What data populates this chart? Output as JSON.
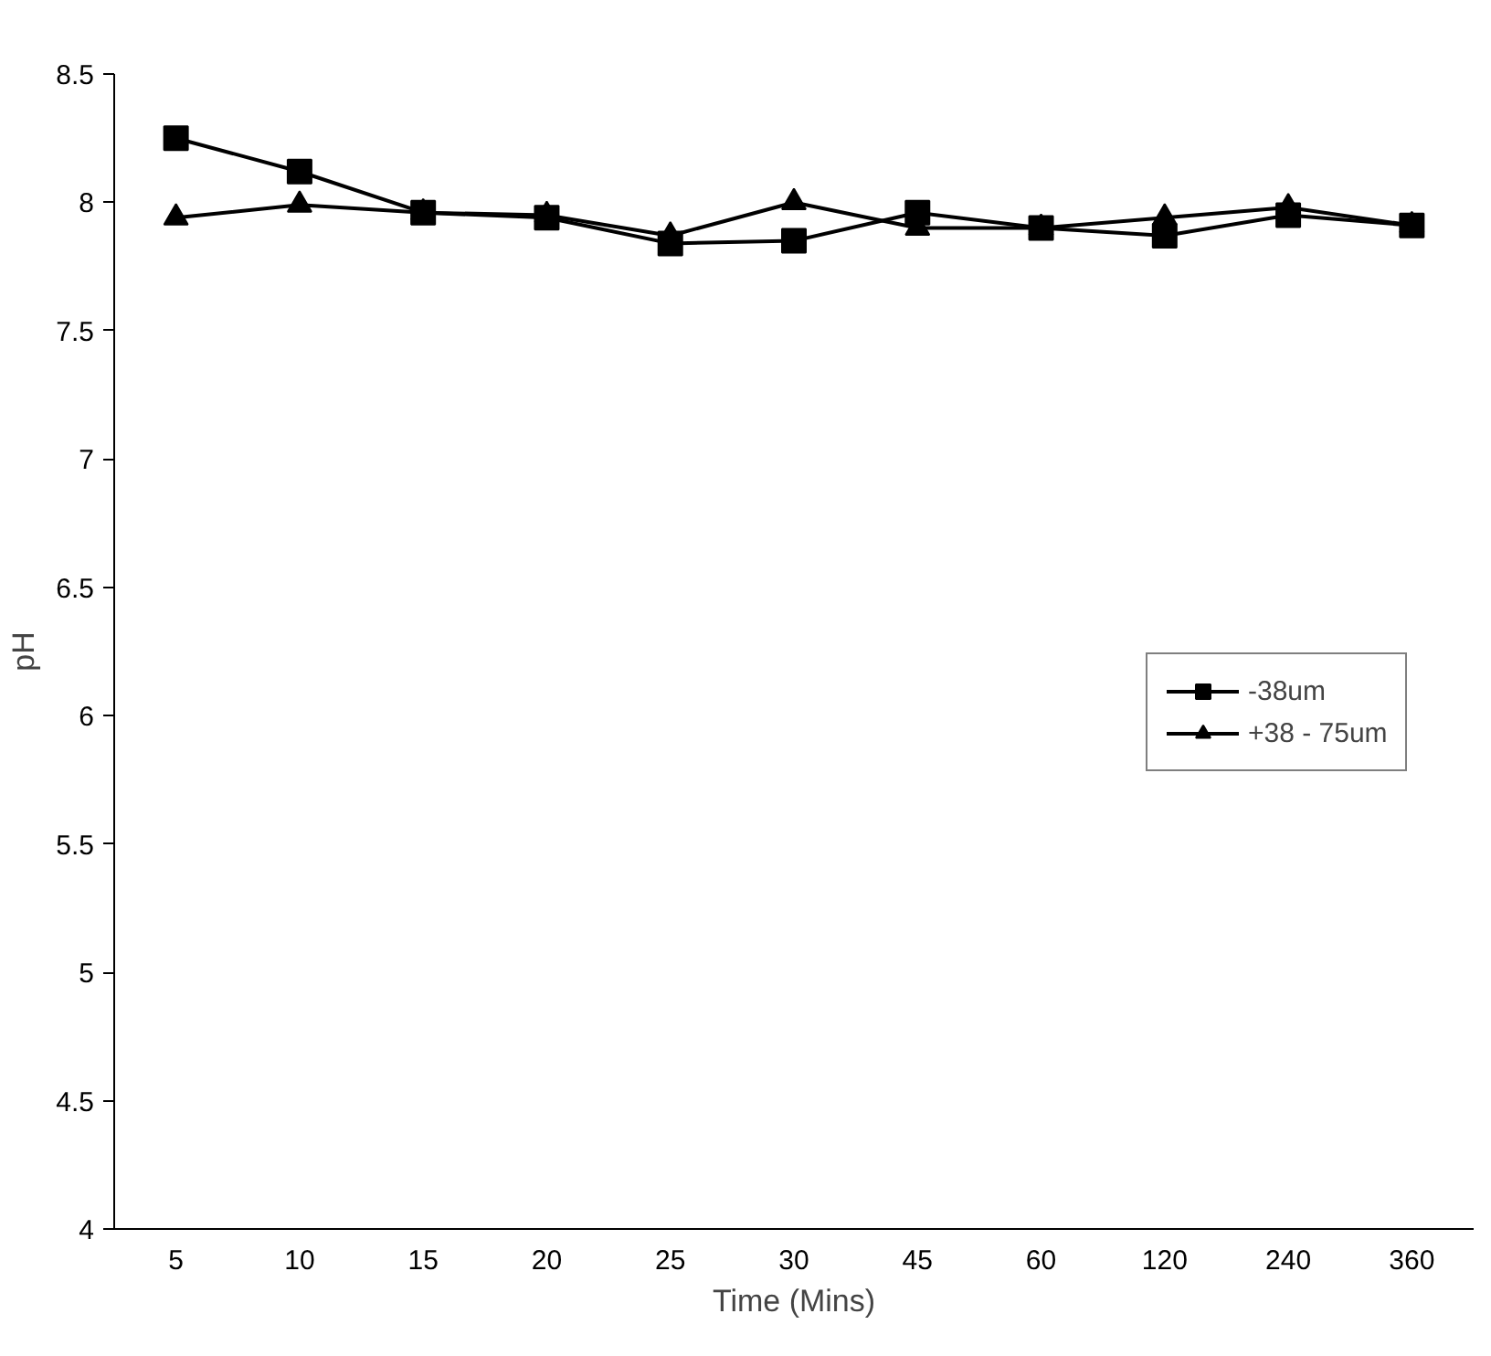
{
  "chart_data": {
    "type": "line",
    "xlabel": "Time (Mins)",
    "ylabel": "pH",
    "categories": [
      "5",
      "10",
      "15",
      "20",
      "25",
      "30",
      "45",
      "60",
      "120",
      "240",
      "360"
    ],
    "ylim": [
      4,
      8.5
    ],
    "yticks": [
      4,
      4.5,
      5,
      5.5,
      6,
      6.5,
      7,
      7.5,
      8,
      8.5
    ],
    "grid": false,
    "legend": "right",
    "line_style": "solid",
    "series": [
      {
        "name": "-38um",
        "color": "#000000",
        "marker": "square",
        "values": [
          8.25,
          8.12,
          7.96,
          7.94,
          7.84,
          7.85,
          7.96,
          7.9,
          7.87,
          7.95,
          7.91
        ]
      },
      {
        "name": "+38 - 75um",
        "color": "#000000",
        "marker": "triangle",
        "values": [
          7.94,
          7.99,
          7.96,
          7.95,
          7.87,
          8.0,
          7.9,
          7.9,
          7.94,
          7.98,
          7.91
        ]
      }
    ]
  }
}
